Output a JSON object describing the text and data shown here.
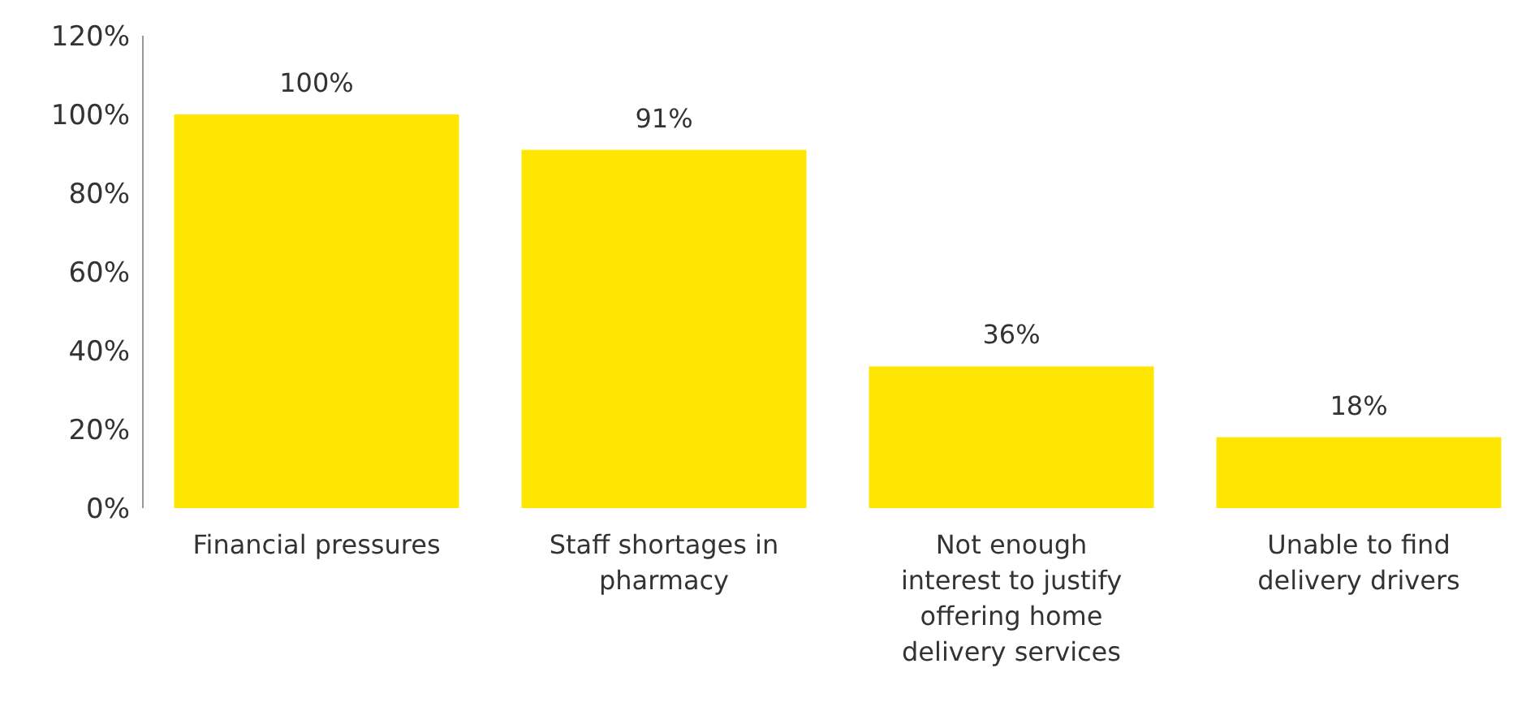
{
  "chart_data": {
    "type": "bar",
    "categories": [
      "Financial pressures",
      "Staff shortages in pharmacy",
      "Not enough interest to justify offering home delivery services",
      "Unable to find delivery drivers"
    ],
    "values": [
      100,
      91,
      36,
      18
    ],
    "value_labels": [
      "100%",
      "91%",
      "36%",
      "18%"
    ],
    "color": "#ffe600",
    "ylim": [
      0,
      120
    ],
    "yticks": [
      {
        "value": 0,
        "label": "0%"
      },
      {
        "value": 20,
        "label": "20%"
      },
      {
        "value": 40,
        "label": "40%"
      },
      {
        "value": 60,
        "label": "60%"
      },
      {
        "value": 80,
        "label": "80%"
      },
      {
        "value": 100,
        "label": "100%"
      },
      {
        "value": 120,
        "label": "120%"
      }
    ],
    "grid": false
  }
}
